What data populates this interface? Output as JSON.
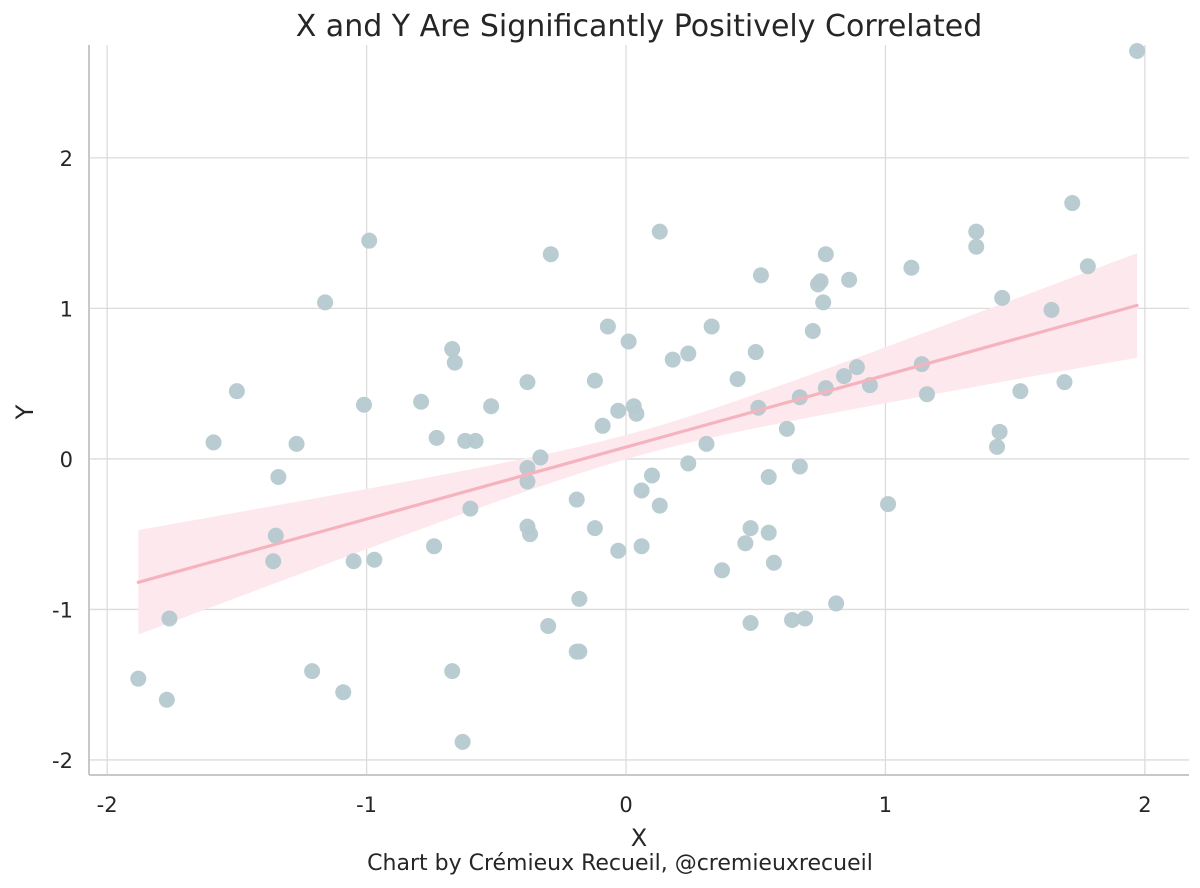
{
  "credit": "Chart by Crémieux Recueil, @cremieuxrecueil",
  "colors": {
    "points": "#b5c9d0",
    "fit_line": "#f5b3bd",
    "ci_band": "#fde9ed",
    "grid": "#dcdcdc",
    "spine": "#c8c8c8"
  },
  "chart_data": {
    "type": "scatter",
    "title": "X and Y Are Significantly Positively Correlated",
    "xlabel": "X",
    "ylabel": "Y",
    "xlim": [
      -2.07,
      2.17
    ],
    "ylim": [
      -2.1,
      2.75
    ],
    "x_ticks": [
      -2,
      -1,
      0,
      1,
      2
    ],
    "x_tick_labels": [
      "-2",
      "-1",
      "0",
      "1",
      "2"
    ],
    "y_ticks": [
      -2,
      -1,
      0,
      1,
      2
    ],
    "y_tick_labels": [
      "-2",
      "-1",
      "0",
      "1",
      "2"
    ],
    "grid": true,
    "points": [
      [
        1.97,
        2.71
      ],
      [
        1.72,
        1.7
      ],
      [
        1.35,
        1.51
      ],
      [
        1.35,
        1.41
      ],
      [
        1.78,
        1.28
      ],
      [
        1.1,
        1.27
      ],
      [
        1.45,
        1.07
      ],
      [
        1.64,
        0.99
      ],
      [
        0.13,
        1.51
      ],
      [
        -0.29,
        1.36
      ],
      [
        -0.99,
        1.45
      ],
      [
        -1.16,
        1.04
      ],
      [
        0.77,
        1.36
      ],
      [
        0.52,
        1.22
      ],
      [
        0.74,
        1.16
      ],
      [
        0.75,
        1.18
      ],
      [
        0.86,
        1.19
      ],
      [
        0.76,
        1.04
      ],
      [
        0.72,
        0.85
      ],
      [
        -0.07,
        0.88
      ],
      [
        0.33,
        0.88
      ],
      [
        0.01,
        0.78
      ],
      [
        -0.67,
        0.73
      ],
      [
        -0.66,
        0.64
      ],
      [
        0.18,
        0.66
      ],
      [
        0.24,
        0.7
      ],
      [
        0.5,
        0.71
      ],
      [
        1.14,
        0.63
      ],
      [
        0.89,
        0.61
      ],
      [
        0.84,
        0.55
      ],
      [
        0.43,
        0.53
      ],
      [
        -0.38,
        0.51
      ],
      [
        -0.12,
        0.52
      ],
      [
        0.94,
        0.49
      ],
      [
        0.77,
        0.47
      ],
      [
        1.69,
        0.51
      ],
      [
        -1.5,
        0.45
      ],
      [
        1.52,
        0.45
      ],
      [
        1.16,
        0.43
      ],
      [
        0.67,
        0.41
      ],
      [
        -1.01,
        0.36
      ],
      [
        -0.79,
        0.38
      ],
      [
        -0.52,
        0.35
      ],
      [
        0.03,
        0.35
      ],
      [
        -0.03,
        0.32
      ],
      [
        0.04,
        0.3
      ],
      [
        0.51,
        0.34
      ],
      [
        -0.09,
        0.22
      ],
      [
        0.62,
        0.2
      ],
      [
        1.44,
        0.18
      ],
      [
        -1.59,
        0.11
      ],
      [
        -1.27,
        0.1
      ],
      [
        -0.73,
        0.14
      ],
      [
        -0.62,
        0.12
      ],
      [
        -0.58,
        0.12
      ],
      [
        0.31,
        0.1
      ],
      [
        1.43,
        0.08
      ],
      [
        -0.33,
        0.01
      ],
      [
        -0.38,
        -0.06
      ],
      [
        0.24,
        -0.03
      ],
      [
        0.67,
        -0.05
      ],
      [
        -1.34,
        -0.12
      ],
      [
        -0.38,
        -0.15
      ],
      [
        0.1,
        -0.11
      ],
      [
        0.55,
        -0.12
      ],
      [
        0.06,
        -0.21
      ],
      [
        -0.6,
        -0.33
      ],
      [
        -0.19,
        -0.27
      ],
      [
        0.13,
        -0.31
      ],
      [
        1.01,
        -0.3
      ],
      [
        -1.35,
        -0.51
      ],
      [
        -0.38,
        -0.45
      ],
      [
        -0.37,
        -0.5
      ],
      [
        -0.12,
        -0.46
      ],
      [
        0.48,
        -0.46
      ],
      [
        0.55,
        -0.49
      ],
      [
        -0.74,
        -0.58
      ],
      [
        0.06,
        -0.58
      ],
      [
        -0.03,
        -0.61
      ],
      [
        0.46,
        -0.56
      ],
      [
        -1.36,
        -0.68
      ],
      [
        -1.05,
        -0.68
      ],
      [
        -0.97,
        -0.67
      ],
      [
        0.57,
        -0.69
      ],
      [
        0.37,
        -0.74
      ],
      [
        -0.18,
        -0.93
      ],
      [
        0.81,
        -0.96
      ],
      [
        -1.76,
        -1.06
      ],
      [
        0.64,
        -1.07
      ],
      [
        0.69,
        -1.06
      ],
      [
        -0.3,
        -1.11
      ],
      [
        0.48,
        -1.09
      ],
      [
        -0.19,
        -1.28
      ],
      [
        -0.18,
        -1.28
      ],
      [
        -1.21,
        -1.41
      ],
      [
        -0.67,
        -1.41
      ],
      [
        -1.88,
        -1.46
      ],
      [
        -1.09,
        -1.55
      ],
      [
        -1.77,
        -1.6
      ],
      [
        -0.63,
        -1.88
      ]
    ],
    "regression": {
      "x_range": [
        -1.88,
        1.97
      ],
      "y_at_ends": [
        -0.82,
        1.02
      ],
      "ci_lower_at_ends": [
        -1.18,
        0.69
      ],
      "ci_upper_at_ends": [
        -0.45,
        1.35
      ],
      "ci_at_mean_halfwidth": 0.08
    }
  }
}
